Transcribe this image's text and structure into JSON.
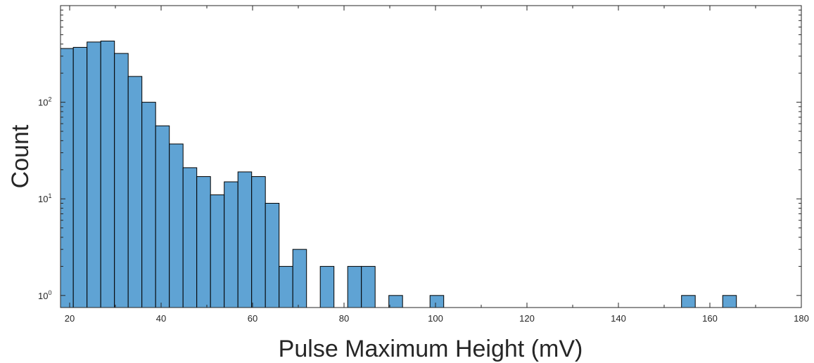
{
  "chart_data": {
    "type": "bar",
    "subtype": "histogram",
    "title": "",
    "xlabel": "Pulse Maximum Height (mV)",
    "ylabel": "Count",
    "xlim": [
      18,
      180
    ],
    "ylim": [
      0.75,
      1000
    ],
    "yscale": "log",
    "grid": false,
    "bin_width": 3,
    "bar_color": "#5fa3d4",
    "edge_color": "#000000",
    "x_ticks": [
      {
        "value": 20,
        "label": "20"
      },
      {
        "value": 40,
        "label": "40"
      },
      {
        "value": 60,
        "label": "60"
      },
      {
        "value": 80,
        "label": "80"
      },
      {
        "value": 100,
        "label": "100"
      },
      {
        "value": 120,
        "label": "120"
      },
      {
        "value": 140,
        "label": "140"
      },
      {
        "value": 160,
        "label": "160"
      },
      {
        "value": 180,
        "label": "180"
      }
    ],
    "y_ticks": [
      {
        "value": 1,
        "base": "10",
        "exp": "0"
      },
      {
        "value": 10,
        "base": "10",
        "exp": "1"
      },
      {
        "value": 100,
        "base": "10",
        "exp": "2"
      }
    ],
    "bins": [
      {
        "x0": 17.8,
        "x1": 20.8,
        "count": 360
      },
      {
        "x0": 20.8,
        "x1": 23.8,
        "count": 370
      },
      {
        "x0": 23.8,
        "x1": 26.8,
        "count": 420
      },
      {
        "x0": 26.8,
        "x1": 29.8,
        "count": 430
      },
      {
        "x0": 29.8,
        "x1": 32.8,
        "count": 320
      },
      {
        "x0": 32.8,
        "x1": 35.8,
        "count": 185
      },
      {
        "x0": 35.8,
        "x1": 38.8,
        "count": 100
      },
      {
        "x0": 38.8,
        "x1": 41.8,
        "count": 57
      },
      {
        "x0": 41.8,
        "x1": 44.8,
        "count": 37
      },
      {
        "x0": 44.8,
        "x1": 47.8,
        "count": 21
      },
      {
        "x0": 47.8,
        "x1": 50.8,
        "count": 17
      },
      {
        "x0": 50.8,
        "x1": 53.8,
        "count": 11
      },
      {
        "x0": 53.8,
        "x1": 56.8,
        "count": 15
      },
      {
        "x0": 56.8,
        "x1": 59.8,
        "count": 19
      },
      {
        "x0": 59.8,
        "x1": 62.8,
        "count": 17
      },
      {
        "x0": 62.8,
        "x1": 65.8,
        "count": 9
      },
      {
        "x0": 65.8,
        "x1": 68.8,
        "count": 2
      },
      {
        "x0": 68.8,
        "x1": 71.8,
        "count": 3
      },
      {
        "x0": 74.8,
        "x1": 77.8,
        "count": 2
      },
      {
        "x0": 80.8,
        "x1": 83.8,
        "count": 2
      },
      {
        "x0": 83.8,
        "x1": 86.8,
        "count": 2
      },
      {
        "x0": 89.8,
        "x1": 92.8,
        "count": 1
      },
      {
        "x0": 98.8,
        "x1": 101.8,
        "count": 1
      },
      {
        "x0": 153.8,
        "x1": 156.8,
        "count": 1
      },
      {
        "x0": 162.8,
        "x1": 165.8,
        "count": 1
      }
    ]
  }
}
